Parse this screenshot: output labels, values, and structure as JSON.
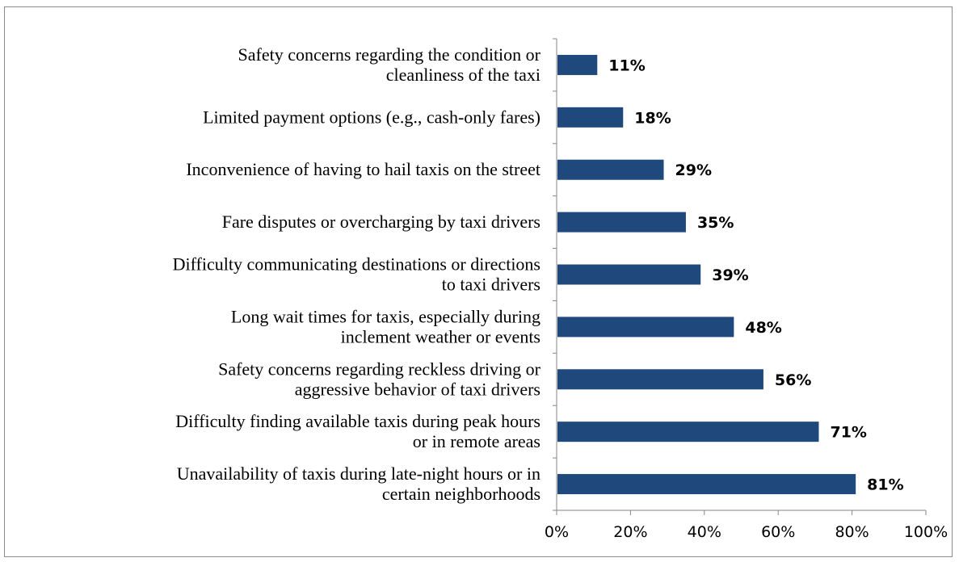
{
  "chart_data": {
    "type": "bar",
    "orientation": "horizontal",
    "categories": [
      [
        "Safety concerns regarding the condition or",
        "cleanliness of the taxi"
      ],
      [
        "Limited payment options (e.g., cash-only fares)"
      ],
      [
        "Inconvenience of having to hail taxis on the street"
      ],
      [
        "Fare disputes or overcharging by taxi drivers"
      ],
      [
        "Difficulty communicating destinations or directions",
        "to taxi drivers"
      ],
      [
        "Long wait times for taxis, especially during",
        "inclement weather or events"
      ],
      [
        "Safety concerns regarding reckless driving or",
        "aggressive behavior of taxi drivers"
      ],
      [
        "Difficulty finding available taxis during peak hours",
        "or in remote areas"
      ],
      [
        "Unavailability of taxis during late-night hours or in",
        "certain neighborhoods"
      ]
    ],
    "values": [
      11,
      18,
      29,
      35,
      39,
      48,
      56,
      71,
      81
    ],
    "value_labels": [
      "11%",
      "18%",
      "29%",
      "35%",
      "39%",
      "48%",
      "56%",
      "71%",
      "81%"
    ],
    "xlim": [
      0,
      100
    ],
    "x_ticks": [
      0,
      20,
      40,
      60,
      80,
      100
    ],
    "x_tick_labels": [
      "0%",
      "20%",
      "40%",
      "60%",
      "80%",
      "100%"
    ],
    "grid": false,
    "legend": "none",
    "bar_color": "#1F497D",
    "title": "",
    "xlabel": "",
    "ylabel": ""
  }
}
